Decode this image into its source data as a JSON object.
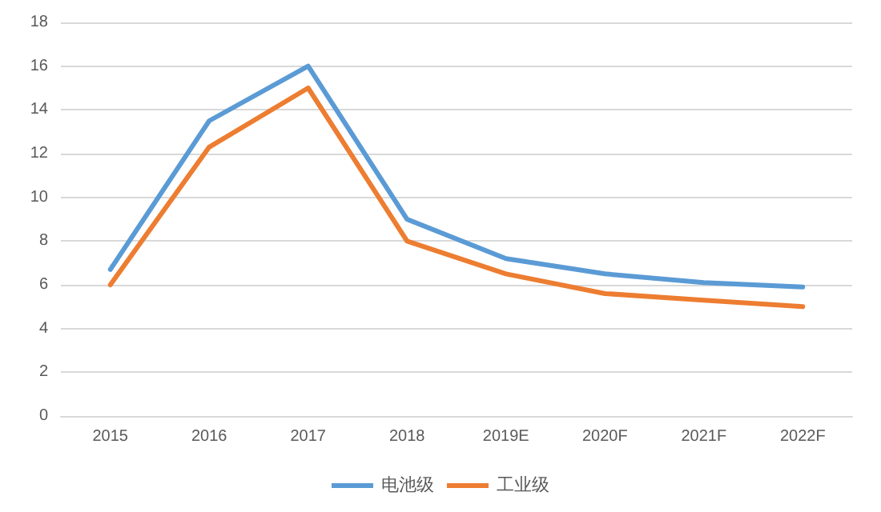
{
  "chart_data": {
    "type": "line",
    "categories": [
      "2015",
      "2016",
      "2017",
      "2018",
      "2019E",
      "2020F",
      "2021F",
      "2022F"
    ],
    "series": [
      {
        "name": "电池级",
        "color": "#5b9bd5",
        "values": [
          6.7,
          13.5,
          16,
          9,
          7.2,
          6.5,
          6.1,
          5.9
        ]
      },
      {
        "name": "工业级",
        "color": "#ed7d31",
        "values": [
          6,
          12.3,
          15,
          8,
          6.5,
          5.6,
          5.3,
          5
        ]
      }
    ],
    "ylim": [
      0,
      18
    ],
    "yticks": [
      0,
      2,
      4,
      6,
      8,
      10,
      12,
      14,
      16,
      18
    ],
    "grid": "y",
    "legend": "bottom",
    "marker": "none",
    "line_style": "solid"
  }
}
